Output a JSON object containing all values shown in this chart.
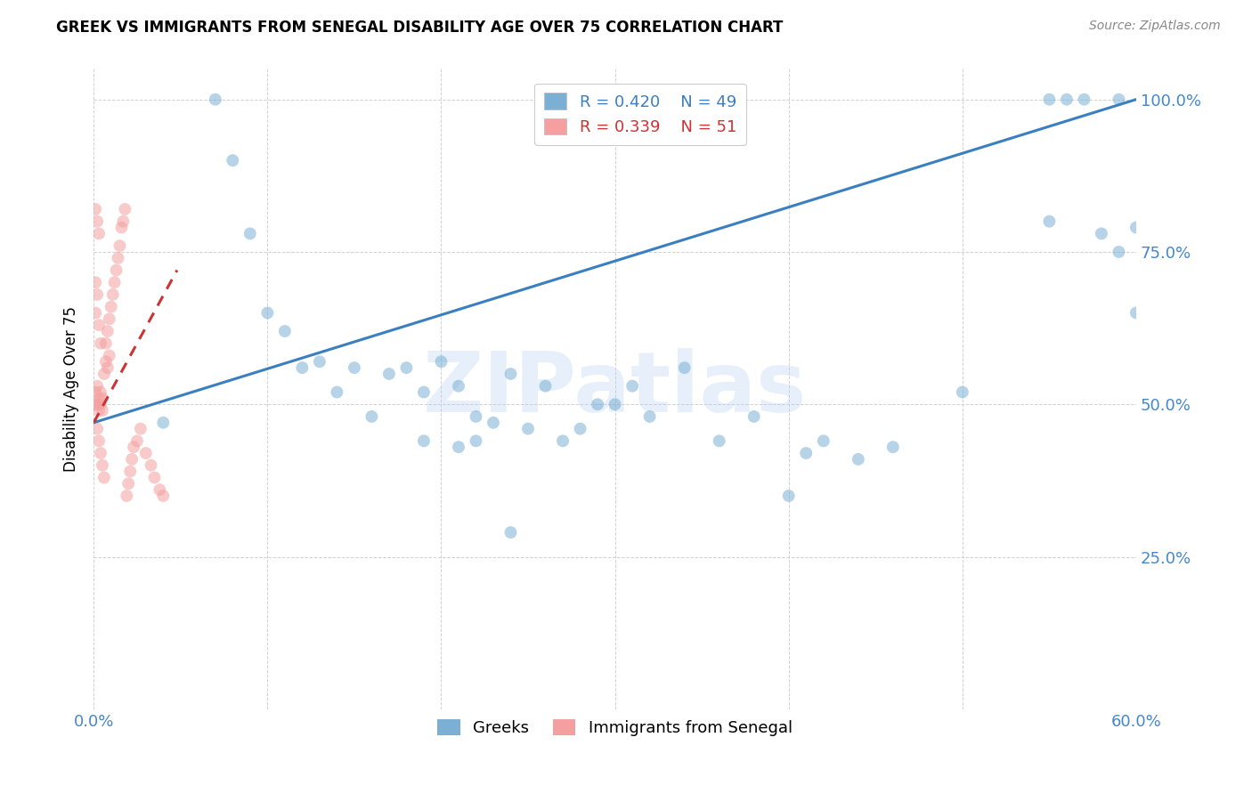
{
  "title": "GREEK VS IMMIGRANTS FROM SENEGAL DISABILITY AGE OVER 75 CORRELATION CHART",
  "source": "Source: ZipAtlas.com",
  "ylabel": "Disability Age Over 75",
  "xlabel_greek": "Greeks",
  "xlabel_senegal": "Immigrants from Senegal",
  "watermark": "ZIPatlas",
  "xlim": [
    0.0,
    0.6
  ],
  "ylim": [
    0.0,
    1.05
  ],
  "yticks": [
    0.25,
    0.5,
    0.75,
    1.0
  ],
  "ytick_labels": [
    "25.0%",
    "50.0%",
    "75.0%",
    "100.0%"
  ],
  "xticks": [
    0.0,
    0.1,
    0.2,
    0.3,
    0.4,
    0.5,
    0.6
  ],
  "xtick_labels": [
    "0.0%",
    "",
    "",
    "",
    "",
    "",
    "60.0%"
  ],
  "r_greek": 0.42,
  "n_greek": 49,
  "r_senegal": 0.339,
  "n_senegal": 51,
  "greek_color": "#7BAFD4",
  "senegal_color": "#F4A0A0",
  "trend_greek_color": "#3A7FBF",
  "trend_senegal_color": "#CC3333",
  "greek_scatter_x": [
    0.04,
    0.07,
    0.08,
    0.09,
    0.1,
    0.11,
    0.12,
    0.13,
    0.14,
    0.15,
    0.16,
    0.17,
    0.18,
    0.19,
    0.2,
    0.21,
    0.22,
    0.23,
    0.24,
    0.25,
    0.26,
    0.27,
    0.28,
    0.29,
    0.3,
    0.31,
    0.32,
    0.34,
    0.36,
    0.38,
    0.4,
    0.41,
    0.42,
    0.44,
    0.46,
    0.5,
    0.55,
    0.55,
    0.56,
    0.57,
    0.58,
    0.59,
    0.59,
    0.6,
    0.6,
    0.22,
    0.24,
    0.19,
    0.21
  ],
  "greek_scatter_y": [
    0.47,
    1.0,
    0.9,
    0.78,
    0.65,
    0.62,
    0.56,
    0.57,
    0.52,
    0.56,
    0.48,
    0.55,
    0.56,
    0.52,
    0.57,
    0.53,
    0.48,
    0.47,
    0.55,
    0.46,
    0.53,
    0.44,
    0.46,
    0.5,
    0.5,
    0.53,
    0.48,
    0.56,
    0.44,
    0.48,
    0.35,
    0.42,
    0.44,
    0.41,
    0.43,
    0.52,
    1.0,
    0.8,
    1.0,
    1.0,
    0.78,
    1.0,
    0.75,
    0.79,
    0.65,
    0.44,
    0.29,
    0.44,
    0.43
  ],
  "senegal_scatter_x": [
    0.001,
    0.001,
    0.002,
    0.002,
    0.003,
    0.003,
    0.004,
    0.004,
    0.005,
    0.005,
    0.006,
    0.007,
    0.007,
    0.008,
    0.008,
    0.009,
    0.009,
    0.01,
    0.011,
    0.012,
    0.013,
    0.014,
    0.015,
    0.016,
    0.017,
    0.018,
    0.019,
    0.02,
    0.021,
    0.022,
    0.023,
    0.025,
    0.027,
    0.03,
    0.033,
    0.035,
    0.038,
    0.04,
    0.001,
    0.002,
    0.003,
    0.001,
    0.002,
    0.001,
    0.003,
    0.004,
    0.002,
    0.003,
    0.004,
    0.005,
    0.006
  ],
  "senegal_scatter_y": [
    0.5,
    0.52,
    0.5,
    0.53,
    0.49,
    0.51,
    0.5,
    0.52,
    0.49,
    0.51,
    0.55,
    0.57,
    0.6,
    0.56,
    0.62,
    0.58,
    0.64,
    0.66,
    0.68,
    0.7,
    0.72,
    0.74,
    0.76,
    0.79,
    0.8,
    0.82,
    0.35,
    0.37,
    0.39,
    0.41,
    0.43,
    0.44,
    0.46,
    0.42,
    0.4,
    0.38,
    0.36,
    0.35,
    0.82,
    0.8,
    0.78,
    0.7,
    0.68,
    0.65,
    0.63,
    0.6,
    0.46,
    0.44,
    0.42,
    0.4,
    0.38
  ],
  "greek_trendline_x": [
    0.0,
    0.6
  ],
  "greek_trendline_y": [
    0.47,
    1.0
  ],
  "senegal_trendline_x": [
    0.0,
    0.048
  ],
  "senegal_trendline_y": [
    0.47,
    0.72
  ]
}
